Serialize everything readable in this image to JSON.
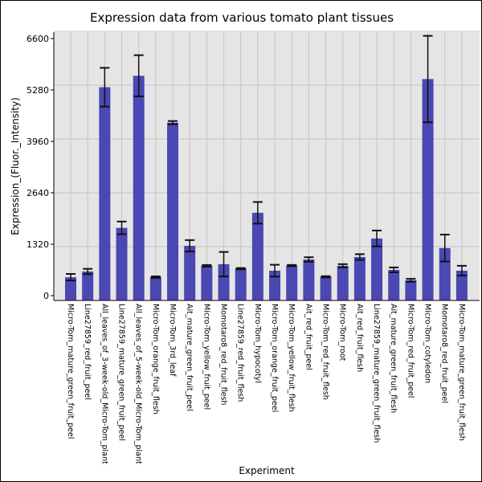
{
  "chart_data": {
    "type": "bar",
    "title": "Expression data from various tomato plant tissues",
    "xlabel": "Experiment",
    "ylabel": "Expression_(Fluor._Intensity)",
    "ylim": [
      0,
      6600
    ],
    "yticks": [
      0,
      1320,
      2640,
      3960,
      5280,
      6600
    ],
    "grid": true,
    "bar_color": "#4b47b3",
    "categories": [
      "Micro-Tom_mature_green_fruit_peel",
      "Line27859_red_fruit_peel",
      "All_leaves_of_3-week-old_Micro-Tom_plant",
      "Line27859_mature_green_fruit_peel",
      "All_leaves_of_5-week-old_Micro-Tom_plant",
      "Micro-Tom_orange_fruit_flesh",
      "Micro-Tom_3rd_leaf",
      "Ait_mature_green_fruit_peel",
      "Micro-Tom_yellow_fruit_peel",
      "Momotaro8_red_fruit_flesh",
      "Line27859_red_fruit_flesh",
      "Micro-Tom_hypocotyl",
      "Micro-Tom_orange_fruit_peel",
      "Micro-Tom_yellow_fruit_flesh",
      "Ait_red_fruit_peel",
      "Micro-Tom_red_fruit_flesh",
      "Micro-Tom_root",
      "Ait_red_fruit_flesh",
      "Line27859_mature_green_fruit_flesh",
      "Ait_mature_green_fruit_flesh",
      "Micro-Tom_red_fruit_peel",
      "Micro-Tom_cotyledon",
      "Momotaro8_red_fruit_peel",
      "Micro-Tom_mature_green_fruit_flesh"
    ],
    "values": [
      570,
      710,
      5230,
      1780,
      5510,
      570,
      4360,
      1340,
      850,
      890,
      780,
      2150,
      730,
      855,
      1005,
      580,
      850,
      1065,
      1520,
      750,
      495,
      5430,
      1285,
      730
    ],
    "errors": [
      80,
      65,
      475,
      155,
      505,
      20,
      40,
      140,
      20,
      300,
      15,
      265,
      145,
      15,
      55,
      15,
      40,
      70,
      195,
      60,
      35,
      1060,
      330,
      120
    ]
  }
}
